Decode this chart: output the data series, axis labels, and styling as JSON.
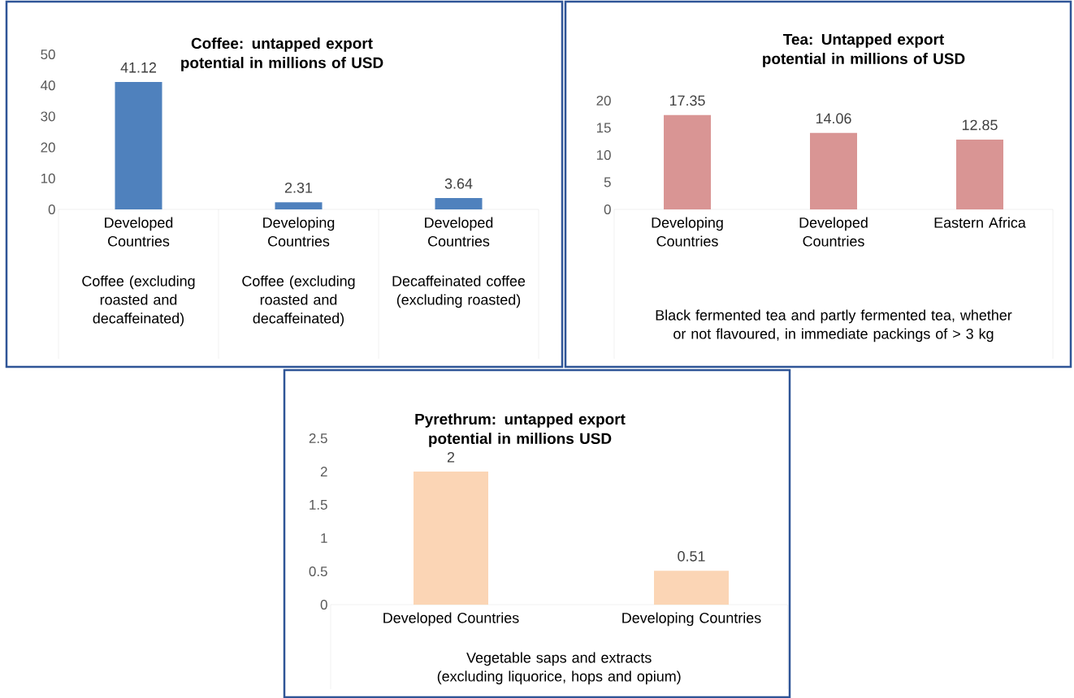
{
  "chart_data": [
    {
      "type": "bar",
      "title": "Coffee: untapped export potential in millions of USD",
      "categories": [
        "Developed Countries",
        "Developing Countries",
        "Developed Countries"
      ],
      "values": [
        41.12,
        2.31,
        3.64
      ],
      "color": "#4f81bd",
      "ylim": [
        0,
        50
      ],
      "yticks": [
        0,
        10,
        20,
        30,
        40,
        50
      ],
      "data_labels": true,
      "annotations": [
        "Coffee (excluding roasted and decaffeinated)",
        "Coffee (excluding roasted and decaffeinated)",
        "Decaffeinated coffee (excluding roasted)"
      ]
    },
    {
      "type": "bar",
      "title": "Tea: Untapped export potential in millions of USD",
      "categories": [
        "Developing Countries",
        "Developed Countries",
        "Eastern Africa"
      ],
      "values": [
        17.35,
        14.06,
        12.85
      ],
      "color": "#d99594",
      "ylim": [
        0,
        20
      ],
      "yticks": [
        0,
        5,
        10,
        15,
        20
      ],
      "data_labels": true,
      "annotations": [
        "Black fermented tea and partly fermented tea, whether or not flavoured, in immediate packings of > 3 kg"
      ]
    },
    {
      "type": "bar",
      "title": "Pyrethrum: untapped export potential in millions USD",
      "categories": [
        "Developed Countries",
        "Developing Countries"
      ],
      "values": [
        2,
        0.51
      ],
      "color": "#fbd5b5",
      "ylim": [
        0,
        2.5
      ],
      "yticks": [
        0,
        0.5,
        1,
        1.5,
        2,
        2.5
      ],
      "data_labels": true,
      "annotations": [
        "Vegetable saps and extracts (excluding liquorice, hops and opium)"
      ]
    }
  ]
}
